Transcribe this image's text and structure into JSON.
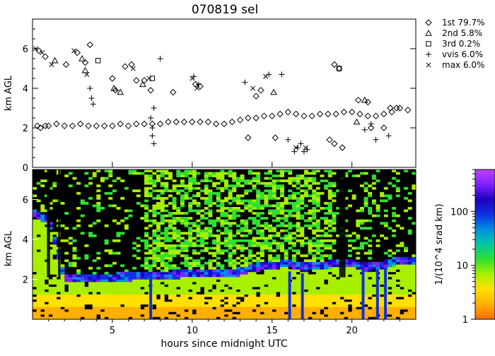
{
  "title": "070819 sel",
  "chart_data": [
    {
      "type": "scatter",
      "panel": "cloud-base-heights",
      "ylabel": "km AGL",
      "xlim": [
        0,
        24
      ],
      "ylim": [
        0,
        7.5
      ],
      "yticks": [
        0,
        2,
        4,
        6
      ],
      "legend_position": "right",
      "series": [
        {
          "name": "1st 79.7%",
          "marker": "diamond",
          "x": [
            0.3,
            0.5,
            0.8,
            1.0,
            1.5,
            2.0,
            2.5,
            3.0,
            3.5,
            4.0,
            4.5,
            5.0,
            5.5,
            6.0,
            6.5,
            7.0,
            7.5,
            8.0,
            8.5,
            9.0,
            9.5,
            10.0,
            10.5,
            11.0,
            11.5,
            12.0,
            12.5,
            13.0,
            13.5,
            14.0,
            14.5,
            15.0,
            15.5,
            16.0,
            16.5,
            17.0,
            17.5,
            18.0,
            18.5,
            19.0,
            19.5,
            20.0,
            20.5,
            21.0,
            21.5,
            22.0,
            22.5,
            23.0,
            23.5,
            0.4,
            0.8,
            2.1,
            2.8,
            3.3,
            3.6,
            5.0,
            5.2,
            5.8,
            6.2,
            6.5,
            7.0,
            7.4,
            8.8,
            10.2,
            10.5,
            14.0,
            14.3,
            18.9,
            19.2,
            20.4,
            21.0,
            21.2,
            22.4,
            22.8,
            13.5,
            15.2,
            18.6,
            18.9,
            19.4,
            22.0
          ],
          "y": [
            2.1,
            2.0,
            2.1,
            2.1,
            2.2,
            2.1,
            2.1,
            2.2,
            2.1,
            2.1,
            2.1,
            2.1,
            2.2,
            2.1,
            2.2,
            2.2,
            2.2,
            2.2,
            2.3,
            2.3,
            2.3,
            2.3,
            2.3,
            2.3,
            2.2,
            2.2,
            2.3,
            2.4,
            2.5,
            2.5,
            2.6,
            2.6,
            2.7,
            2.8,
            2.7,
            2.6,
            2.6,
            2.7,
            2.7,
            2.7,
            2.8,
            2.8,
            2.7,
            2.6,
            2.6,
            2.7,
            2.8,
            3.0,
            2.9,
            5.9,
            5.6,
            5.2,
            5.8,
            5.3,
            6.2,
            4.5,
            3.9,
            5.1,
            5.2,
            4.4,
            4.4,
            3.9,
            3.8,
            4.2,
            4.1,
            3.6,
            3.9,
            5.2,
            5.0,
            3.4,
            3.3,
            2.0,
            3.0,
            3.0,
            1.5,
            1.5,
            1.4,
            1.2,
            1.0,
            2.0
          ]
        },
        {
          "name": "2nd  5.8%",
          "marker": "triangle",
          "x": [
            1.4,
            3.1,
            3.3,
            5.1,
            5.5,
            6.9,
            15.1,
            20.8,
            20.3
          ],
          "y": [
            5.4,
            5.5,
            4.9,
            4.0,
            3.8,
            4.2,
            3.8,
            3.4,
            2.3
          ]
        },
        {
          "name": "3rd  0.2%",
          "marker": "square",
          "x": [
            4.1,
            7.5,
            19.2
          ],
          "y": [
            5.4,
            4.5,
            5.0
          ]
        },
        {
          "name": "vvis  6.0%",
          "marker": "plus",
          "x": [
            3.6,
            3.7,
            3.8,
            7.4,
            7.5,
            7.5,
            7.6,
            7.6,
            8.0,
            10.1,
            10.4,
            13.3,
            14.8,
            15.6,
            16.0,
            16.4,
            16.6,
            16.8,
            17.0,
            17.2,
            20.8,
            21.2,
            21.5,
            22.3
          ],
          "y": [
            4.0,
            3.5,
            3.2,
            2.5,
            2.0,
            1.6,
            1.2,
            3.0,
            5.5,
            4.6,
            4.2,
            4.3,
            4.7,
            4.7,
            1.4,
            0.8,
            1.0,
            1.2,
            0.8,
            0.9,
            1.9,
            2.2,
            1.4,
            1.6
          ]
        },
        {
          "name": "max  6.0%",
          "marker": "cross",
          "x": [
            0.2,
            0.6,
            1.2,
            2.6,
            3.4,
            6.3,
            7.3,
            10.0,
            10.3,
            13.8,
            14.6,
            16.5,
            17.1
          ],
          "y": [
            6.0,
            5.8,
            5.2,
            5.9,
            4.7,
            5.0,
            4.5,
            4.5,
            4.0,
            4.0,
            4.6,
            1.0,
            1.0
          ]
        }
      ]
    },
    {
      "type": "heatmap",
      "panel": "lidar-backscatter",
      "xlabel": "hours since midnight UTC",
      "ylabel": "km AGL",
      "xlim": [
        0,
        24
      ],
      "ylim": [
        0,
        7.5
      ],
      "xticks": [
        5,
        10,
        15,
        20
      ],
      "yticks": [
        2,
        4,
        6
      ],
      "colorbar": {
        "label": "1/(10^4 srad km)",
        "scale": "log",
        "range": [
          1,
          600
        ],
        "ticks": [
          1,
          10,
          100
        ],
        "colors": [
          "#ff6a00",
          "#ffb000",
          "#ffe000",
          "#a8f000",
          "#30e030",
          "#00c8a0",
          "#0090e0",
          "#1030e0",
          "#2000c0",
          "#8020ff",
          "#c040ff"
        ]
      },
      "cloud_base_km": [
        [
          0,
          5.3
        ],
        [
          1,
          5.0
        ],
        [
          2,
          2.1
        ],
        [
          5,
          2.1
        ],
        [
          8,
          2.2
        ],
        [
          10,
          2.3
        ],
        [
          12,
          2.3
        ],
        [
          13,
          2.4
        ],
        [
          14,
          2.6
        ],
        [
          15,
          2.7
        ],
        [
          16,
          2.8
        ],
        [
          17,
          2.6
        ],
        [
          18,
          2.7
        ],
        [
          19,
          2.8
        ],
        [
          20,
          2.8
        ],
        [
          21,
          2.6
        ],
        [
          22,
          2.7
        ],
        [
          23,
          3.0
        ],
        [
          24,
          2.9
        ]
      ]
    }
  ]
}
